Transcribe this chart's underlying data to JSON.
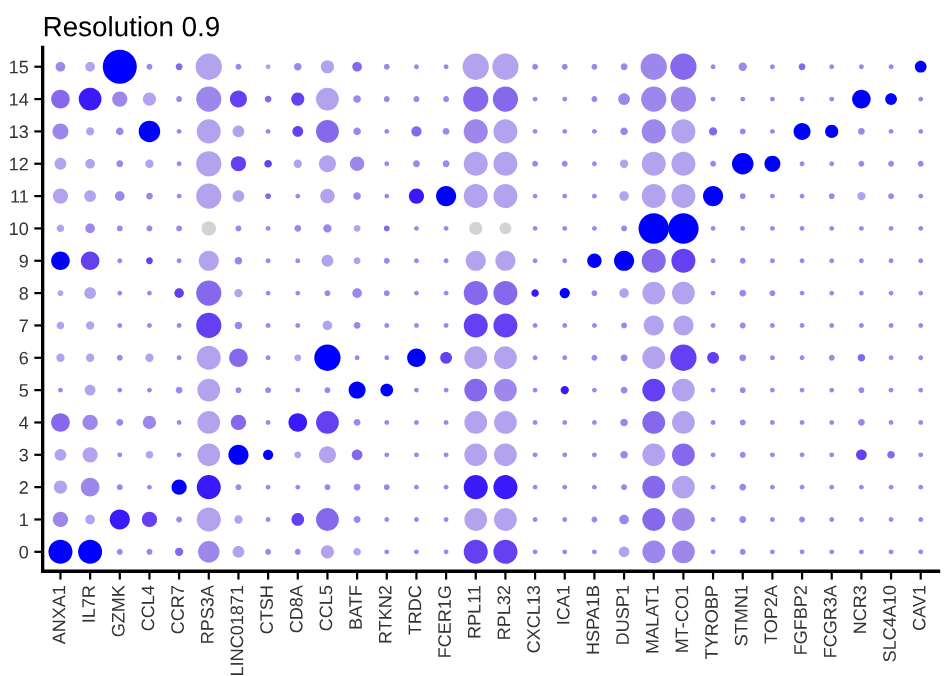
{
  "chart_data": {
    "type": "bubble",
    "title": "Resolution 0.9",
    "categories": [
      "ANXA1",
      "IL7R",
      "GZMK",
      "CCL4",
      "CCR7",
      "RPS3A",
      "LINC01871",
      "CTSH",
      "CD8A",
      "CCL5",
      "BATF",
      "RTKN2",
      "TRDC",
      "FCER1G",
      "RPL11",
      "RPL32",
      "CXCL13",
      "ICA1",
      "HSPA1B",
      "DUSP1",
      "MALAT1",
      "MT-CO1",
      "TYROBP",
      "STMN1",
      "TOP2A",
      "FGFBP2",
      "FCGR3A",
      "NCR3",
      "SLC4A10",
      "CAV1"
    ],
    "ylim": [
      -0.6,
      15.6
    ],
    "yticks": [
      0,
      1,
      2,
      3,
      4,
      5,
      6,
      7,
      8,
      9,
      10,
      11,
      12,
      13,
      14,
      15
    ],
    "grid": false,
    "legend": false,
    "marker": "circle",
    "series": [
      {
        "values": [
          0,
          0,
          0,
          0,
          0,
          0,
          0,
          0,
          0,
          0,
          0,
          0,
          0,
          0,
          0,
          0,
          0,
          0,
          0,
          0,
          0,
          0,
          0,
          0,
          0,
          0,
          0,
          0,
          0,
          0
        ],
        "sizes": [
          0.5,
          0.5,
          0.03,
          0.03,
          0.06,
          0.4,
          0.12,
          0.03,
          0.03,
          0.15,
          0.05,
          0.02,
          0.02,
          0.02,
          0.5,
          0.5,
          0.02,
          0.02,
          0.02,
          0.1,
          0.45,
          0.45,
          0.02,
          0.03,
          0.02,
          0.02,
          0.02,
          0.02,
          0.02,
          0.02
        ],
        "colors": [
          "#0000ff",
          "#0000ff",
          "#9d86ec",
          "#9d86ec",
          "#8668ec",
          "#9d86ec",
          "#b3a3ef",
          "#9d86ec",
          "#9d86ec",
          "#b3a3ef",
          "#b3a3ef",
          "#9d86ec",
          "#9d86ec",
          "#9d86ec",
          "#6440f2",
          "#6440f2",
          "#9d86ec",
          "#9d86ec",
          "#9d86ec",
          "#b3a3ef",
          "#9d86ec",
          "#9d86ec",
          "#9d86ec",
          "#9d86ec",
          "#9d86ec",
          "#9d86ec",
          "#9d86ec",
          "#9d86ec",
          "#9d86ec",
          "#9d86ec"
        ]
      },
      {
        "values": [
          1,
          1,
          1,
          1,
          1,
          1,
          1,
          1,
          1,
          1,
          1,
          1,
          1,
          1,
          1,
          1,
          1,
          1,
          1,
          1,
          1,
          1,
          1,
          1,
          1,
          1,
          1,
          1,
          1,
          1
        ],
        "sizes": [
          0.2,
          0.08,
          0.35,
          0.2,
          0.03,
          0.5,
          0.06,
          0.02,
          0.14,
          0.45,
          0.04,
          0.02,
          0.02,
          0.02,
          0.45,
          0.45,
          0.02,
          0.02,
          0.03,
          0.08,
          0.45,
          0.45,
          0.02,
          0.04,
          0.02,
          0.03,
          0.02,
          0.02,
          0.02,
          0.02
        ],
        "colors": [
          "#9d86ec",
          "#b3a3ef",
          "#3a1af9",
          "#6440f2",
          "#9d86ec",
          "#b3a3ef",
          "#b3a3ef",
          "#9d86ec",
          "#6440f2",
          "#8668ec",
          "#9d86ec",
          "#9d86ec",
          "#9d86ec",
          "#9d86ec",
          "#b3a3ef",
          "#b3a3ef",
          "#9d86ec",
          "#9d86ec",
          "#9d86ec",
          "#9d86ec",
          "#8668ec",
          "#9d86ec",
          "#9d86ec",
          "#9d86ec",
          "#9d86ec",
          "#9d86ec",
          "#9d86ec",
          "#9d86ec",
          "#9d86ec",
          "#9d86ec"
        ]
      },
      {
        "values": [
          2,
          2,
          2,
          2,
          2,
          2,
          2,
          2,
          2,
          2,
          2,
          2,
          2,
          2,
          2,
          2,
          2,
          2,
          2,
          2,
          2,
          2,
          2,
          2,
          2,
          2,
          2,
          2,
          2,
          2
        ],
        "sizes": [
          0.15,
          0.3,
          0.03,
          0.02,
          0.2,
          0.5,
          0.03,
          0.02,
          0.02,
          0.03,
          0.04,
          0.03,
          0.02,
          0.02,
          0.5,
          0.5,
          0.02,
          0.02,
          0.02,
          0.03,
          0.45,
          0.45,
          0.02,
          0.04,
          0.02,
          0.02,
          0.02,
          0.02,
          0.02,
          0.02
        ],
        "colors": [
          "#b3a3ef",
          "#9d86ec",
          "#9d86ec",
          "#9d86ec",
          "#0000ff",
          "#3a1af9",
          "#9d86ec",
          "#9d86ec",
          "#9d86ec",
          "#9d86ec",
          "#9d86ec",
          "#9d86ec",
          "#9d86ec",
          "#9d86ec",
          "#3a1af9",
          "#3a1af9",
          "#9d86ec",
          "#9d86ec",
          "#9d86ec",
          "#9d86ec",
          "#8668ec",
          "#b3a3ef",
          "#9d86ec",
          "#9d86ec",
          "#9d86ec",
          "#9d86ec",
          "#9d86ec",
          "#9d86ec",
          "#9d86ec",
          "#9d86ec"
        ]
      },
      {
        "values": [
          3,
          3,
          3,
          3,
          3,
          3,
          3,
          3,
          3,
          3,
          3,
          3,
          3,
          3,
          3,
          3,
          3,
          3,
          3,
          3,
          3,
          3,
          3,
          3,
          3,
          3,
          3,
          3,
          3,
          3
        ],
        "sizes": [
          0.12,
          0.2,
          0.02,
          0.05,
          0.02,
          0.45,
          0.35,
          0.09,
          0.04,
          0.25,
          0.1,
          0.02,
          0.02,
          0.02,
          0.45,
          0.45,
          0.02,
          0.02,
          0.02,
          0.05,
          0.45,
          0.45,
          0.02,
          0.03,
          0.02,
          0.02,
          0.02,
          0.1,
          0.05,
          0.02
        ],
        "colors": [
          "#b3a3ef",
          "#b3a3ef",
          "#9d86ec",
          "#b3a3ef",
          "#9d86ec",
          "#b3a3ef",
          "#0000ff",
          "#0000ff",
          "#b3a3ef",
          "#b3a3ef",
          "#8668ec",
          "#9d86ec",
          "#9d86ec",
          "#9d86ec",
          "#b3a3ef",
          "#b3a3ef",
          "#9d86ec",
          "#9d86ec",
          "#9d86ec",
          "#9d86ec",
          "#b3a3ef",
          "#8668ec",
          "#9d86ec",
          "#9d86ec",
          "#9d86ec",
          "#9d86ec",
          "#9d86ec",
          "#6440f2",
          "#8668ec",
          "#9d86ec"
        ]
      },
      {
        "values": [
          4,
          4,
          4,
          4,
          4,
          4,
          4,
          4,
          4,
          4,
          4,
          4,
          4,
          4,
          4,
          4,
          4,
          4,
          4,
          4,
          4,
          4,
          4,
          4,
          4,
          4,
          4,
          4,
          4,
          4
        ],
        "sizes": [
          0.3,
          0.2,
          0.04,
          0.15,
          0.02,
          0.45,
          0.2,
          0.02,
          0.3,
          0.45,
          0.04,
          0.02,
          0.02,
          0.02,
          0.45,
          0.45,
          0.02,
          0.02,
          0.02,
          0.05,
          0.45,
          0.45,
          0.02,
          0.03,
          0.02,
          0.02,
          0.02,
          0.04,
          0.02,
          0.02
        ],
        "colors": [
          "#8668ec",
          "#9d86ec",
          "#9d86ec",
          "#9d86ec",
          "#9d86ec",
          "#b3a3ef",
          "#8668ec",
          "#9d86ec",
          "#3a1af9",
          "#6440f2",
          "#9d86ec",
          "#9d86ec",
          "#9d86ec",
          "#9d86ec",
          "#b3a3ef",
          "#b3a3ef",
          "#9d86ec",
          "#9d86ec",
          "#9d86ec",
          "#9d86ec",
          "#8668ec",
          "#b3a3ef",
          "#9d86ec",
          "#9d86ec",
          "#9d86ec",
          "#9d86ec",
          "#9d86ec",
          "#9d86ec",
          "#9d86ec",
          "#9d86ec"
        ]
      },
      {
        "values": [
          5,
          5,
          5,
          5,
          5,
          5,
          5,
          5,
          5,
          5,
          5,
          5,
          5,
          5,
          5,
          5,
          5,
          5,
          5,
          5,
          5,
          5,
          5,
          5,
          5,
          5,
          5,
          5,
          5,
          5
        ],
        "sizes": [
          0.02,
          0.1,
          0.02,
          0.02,
          0.04,
          0.45,
          0.03,
          0.03,
          0.02,
          0.03,
          0.25,
          0.14,
          0.02,
          0.02,
          0.45,
          0.45,
          0.02,
          0.06,
          0.02,
          0.04,
          0.45,
          0.45,
          0.02,
          0.03,
          0.02,
          0.02,
          0.02,
          0.03,
          0.02,
          0.02
        ],
        "colors": [
          "#9d86ec",
          "#b3a3ef",
          "#9d86ec",
          "#9d86ec",
          "#9d86ec",
          "#b3a3ef",
          "#9d86ec",
          "#9d86ec",
          "#9d86ec",
          "#9d86ec",
          "#0000ff",
          "#0000ff",
          "#9d86ec",
          "#9d86ec",
          "#8668ec",
          "#9d86ec",
          "#9d86ec",
          "#3a1af9",
          "#9d86ec",
          "#9d86ec",
          "#6440f2",
          "#b3a3ef",
          "#9d86ec",
          "#9d86ec",
          "#9d86ec",
          "#9d86ec",
          "#9d86ec",
          "#9d86ec",
          "#9d86ec",
          "#9d86ec"
        ]
      },
      {
        "values": [
          6,
          6,
          6,
          6,
          6,
          6,
          6,
          6,
          6,
          6,
          6,
          6,
          6,
          6,
          6,
          6,
          6,
          6,
          6,
          6,
          6,
          6,
          6,
          6,
          6,
          6,
          6,
          6,
          6,
          6
        ],
        "sizes": [
          0.06,
          0.06,
          0.03,
          0.06,
          0.02,
          0.5,
          0.3,
          0.02,
          0.04,
          0.6,
          0.02,
          0.02,
          0.3,
          0.12,
          0.45,
          0.45,
          0.02,
          0.02,
          0.03,
          0.04,
          0.45,
          0.6,
          0.12,
          0.04,
          0.02,
          0.02,
          0.03,
          0.05,
          0.02,
          0.02
        ],
        "colors": [
          "#b3a3ef",
          "#b3a3ef",
          "#9d86ec",
          "#b3a3ef",
          "#9d86ec",
          "#b3a3ef",
          "#8668ec",
          "#9d86ec",
          "#b3a3ef",
          "#0000ff",
          "#9d86ec",
          "#9d86ec",
          "#0000ff",
          "#6440f2",
          "#b3a3ef",
          "#b3a3ef",
          "#9d86ec",
          "#9d86ec",
          "#9d86ec",
          "#9d86ec",
          "#b3a3ef",
          "#6440f2",
          "#6440f2",
          "#9d86ec",
          "#9d86ec",
          "#9d86ec",
          "#9d86ec",
          "#8668ec",
          "#9d86ec",
          "#9d86ec"
        ]
      },
      {
        "values": [
          7,
          7,
          7,
          7,
          7,
          7,
          7,
          7,
          7,
          7,
          7,
          7,
          7,
          7,
          7,
          7,
          7,
          7,
          7,
          7,
          7,
          7,
          7,
          7,
          7,
          7,
          7,
          7,
          7,
          7
        ],
        "sizes": [
          0.05,
          0.06,
          0.02,
          0.02,
          0.02,
          0.55,
          0.05,
          0.02,
          0.02,
          0.08,
          0.04,
          0.02,
          0.02,
          0.02,
          0.5,
          0.5,
          0.02,
          0.02,
          0.02,
          0.03,
          0.35,
          0.35,
          0.02,
          0.03,
          0.02,
          0.02,
          0.02,
          0.02,
          0.02,
          0.02
        ],
        "colors": [
          "#b3a3ef",
          "#b3a3ef",
          "#9d86ec",
          "#9d86ec",
          "#9d86ec",
          "#6440f2",
          "#9d86ec",
          "#9d86ec",
          "#9d86ec",
          "#b3a3ef",
          "#9d86ec",
          "#9d86ec",
          "#9d86ec",
          "#9d86ec",
          "#6440f2",
          "#6440f2",
          "#9d86ec",
          "#9d86ec",
          "#9d86ec",
          "#9d86ec",
          "#b3a3ef",
          "#b3a3ef",
          "#9d86ec",
          "#9d86ec",
          "#9d86ec",
          "#9d86ec",
          "#9d86ec",
          "#9d86ec",
          "#9d86ec",
          "#9d86ec"
        ]
      },
      {
        "values": [
          8,
          8,
          8,
          8,
          8,
          8,
          8,
          8,
          8,
          8,
          8,
          8,
          8,
          8,
          8,
          8,
          8,
          8,
          8,
          8,
          8,
          8,
          8,
          8,
          8,
          8,
          8,
          8,
          8,
          8
        ],
        "sizes": [
          0.03,
          0.12,
          0.02,
          0.02,
          0.08,
          0.55,
          0.06,
          0.02,
          0.02,
          0.03,
          0.08,
          0.03,
          0.02,
          0.02,
          0.5,
          0.5,
          0.05,
          0.09,
          0.03,
          0.08,
          0.45,
          0.45,
          0.02,
          0.04,
          0.03,
          0.02,
          0.02,
          0.02,
          0.02,
          0.02
        ],
        "colors": [
          "#b3a3ef",
          "#b3a3ef",
          "#9d86ec",
          "#9d86ec",
          "#6440f2",
          "#8668ec",
          "#b3a3ef",
          "#9d86ec",
          "#9d86ec",
          "#9d86ec",
          "#9d86ec",
          "#9d86ec",
          "#9d86ec",
          "#9d86ec",
          "#8668ec",
          "#8668ec",
          "#3a1af9",
          "#0000ff",
          "#9d86ec",
          "#b3a3ef",
          "#b3a3ef",
          "#b3a3ef",
          "#9d86ec",
          "#9d86ec",
          "#9d86ec",
          "#9d86ec",
          "#9d86ec",
          "#9d86ec",
          "#9d86ec",
          "#9d86ec"
        ]
      },
      {
        "values": [
          9,
          9,
          9,
          9,
          9,
          9,
          9,
          9,
          9,
          9,
          9,
          9,
          9,
          9,
          9,
          9,
          9,
          9,
          9,
          9,
          9,
          9,
          9,
          9,
          9,
          9,
          9,
          9,
          9,
          9
        ],
        "sizes": [
          0.3,
          0.3,
          0.02,
          0.04,
          0.02,
          0.35,
          0.05,
          0.02,
          0.02,
          0.12,
          0.04,
          0.03,
          0.02,
          0.02,
          0.35,
          0.35,
          0.02,
          0.02,
          0.18,
          0.35,
          0.5,
          0.5,
          0.02,
          0.03,
          0.02,
          0.02,
          0.02,
          0.02,
          0.02,
          0.02
        ],
        "colors": [
          "#0000ff",
          "#6440f2",
          "#9d86ec",
          "#6440f2",
          "#9d86ec",
          "#b3a3ef",
          "#9d86ec",
          "#9d86ec",
          "#9d86ec",
          "#b3a3ef",
          "#b3a3ef",
          "#9d86ec",
          "#9d86ec",
          "#9d86ec",
          "#b3a3ef",
          "#b3a3ef",
          "#9d86ec",
          "#9d86ec",
          "#0000ff",
          "#0000ff",
          "#8668ec",
          "#6440f2",
          "#9d86ec",
          "#9d86ec",
          "#9d86ec",
          "#9d86ec",
          "#9d86ec",
          "#9d86ec",
          "#9d86ec",
          "#9d86ec"
        ]
      },
      {
        "values": [
          10,
          10,
          10,
          10,
          10,
          10,
          10,
          10,
          10,
          10,
          10,
          10,
          10,
          10,
          10,
          10,
          10,
          10,
          10,
          10,
          10,
          10,
          10,
          10,
          10,
          10,
          10,
          10,
          10,
          10
        ],
        "sizes": [
          0.05,
          0.08,
          0.03,
          0.03,
          0.03,
          0.18,
          0.03,
          0.02,
          0.04,
          0.06,
          0.04,
          0.03,
          0.02,
          0.02,
          0.15,
          0.12,
          0.02,
          0.02,
          0.02,
          0.03,
          0.8,
          0.8,
          0.02,
          0.02,
          0.02,
          0.02,
          0.02,
          0.02,
          0.02,
          0.02
        ],
        "colors": [
          "#b3a3ef",
          "#9d86ec",
          "#9d86ec",
          "#9d86ec",
          "#9d86ec",
          "#d3d3d3",
          "#9d86ec",
          "#9d86ec",
          "#9d86ec",
          "#9d86ec",
          "#b3a3ef",
          "#8668ec",
          "#9d86ec",
          "#9d86ec",
          "#d3d3d3",
          "#d3d3d3",
          "#9d86ec",
          "#9d86ec",
          "#9d86ec",
          "#9d86ec",
          "#0000ff",
          "#0000ff",
          "#9d86ec",
          "#9d86ec",
          "#9d86ec",
          "#9d86ec",
          "#9d86ec",
          "#9d86ec",
          "#9d86ec",
          "#9d86ec"
        ]
      },
      {
        "values": [
          11,
          11,
          11,
          11,
          11,
          11,
          11,
          11,
          11,
          11,
          11,
          11,
          11,
          11,
          11,
          11,
          11,
          11,
          11,
          11,
          11,
          11,
          11,
          11,
          11,
          11,
          11,
          11,
          11,
          11
        ],
        "sizes": [
          0.2,
          0.12,
          0.08,
          0.04,
          0.02,
          0.55,
          0.12,
          0.03,
          0.02,
          0.18,
          0.05,
          0.02,
          0.2,
          0.35,
          0.5,
          0.5,
          0.02,
          0.02,
          0.02,
          0.08,
          0.5,
          0.5,
          0.35,
          0.03,
          0.02,
          0.02,
          0.03,
          0.06,
          0.03,
          0.02
        ],
        "colors": [
          "#b3a3ef",
          "#b3a3ef",
          "#9d86ec",
          "#9d86ec",
          "#9d86ec",
          "#b3a3ef",
          "#b3a3ef",
          "#8668ec",
          "#9d86ec",
          "#b3a3ef",
          "#9d86ec",
          "#9d86ec",
          "#3a1af9",
          "#0000ff",
          "#b3a3ef",
          "#b3a3ef",
          "#9d86ec",
          "#9d86ec",
          "#9d86ec",
          "#b3a3ef",
          "#b3a3ef",
          "#b3a3ef",
          "#0000ff",
          "#9d86ec",
          "#9d86ec",
          "#9d86ec",
          "#9d86ec",
          "#b3a3ef",
          "#9d86ec",
          "#9d86ec"
        ]
      },
      {
        "values": [
          12,
          12,
          12,
          12,
          12,
          12,
          12,
          12,
          12,
          12,
          12,
          12,
          12,
          12,
          12,
          12,
          12,
          12,
          12,
          12,
          12,
          12,
          12,
          12,
          12,
          12,
          12,
          12,
          12,
          12
        ],
        "sizes": [
          0.12,
          0.08,
          0.04,
          0.06,
          0.02,
          0.55,
          0.2,
          0.05,
          0.06,
          0.25,
          0.18,
          0.02,
          0.04,
          0.04,
          0.5,
          0.5,
          0.03,
          0.03,
          0.02,
          0.06,
          0.5,
          0.5,
          0.03,
          0.4,
          0.22,
          0.02,
          0.02,
          0.03,
          0.03,
          0.03
        ],
        "colors": [
          "#b3a3ef",
          "#b3a3ef",
          "#9d86ec",
          "#b3a3ef",
          "#9d86ec",
          "#b3a3ef",
          "#6440f2",
          "#6440f2",
          "#b3a3ef",
          "#b3a3ef",
          "#9d86ec",
          "#9d86ec",
          "#9d86ec",
          "#9d86ec",
          "#b3a3ef",
          "#b3a3ef",
          "#9d86ec",
          "#9d86ec",
          "#9d86ec",
          "#b3a3ef",
          "#b3a3ef",
          "#b3a3ef",
          "#9d86ec",
          "#0000ff",
          "#0000ff",
          "#9d86ec",
          "#9d86ec",
          "#9d86ec",
          "#9d86ec",
          "#9d86ec"
        ]
      },
      {
        "values": [
          13,
          13,
          13,
          13,
          13,
          13,
          13,
          13,
          13,
          13,
          13,
          13,
          13,
          13,
          13,
          13,
          13,
          13,
          13,
          13,
          13,
          13,
          13,
          13,
          13,
          13,
          13,
          13,
          13,
          13
        ],
        "sizes": [
          0.22,
          0.06,
          0.05,
          0.4,
          0.02,
          0.5,
          0.12,
          0.02,
          0.1,
          0.45,
          0.05,
          0.02,
          0.09,
          0.04,
          0.5,
          0.5,
          0.02,
          0.02,
          0.02,
          0.05,
          0.5,
          0.5,
          0.06,
          0.03,
          0.02,
          0.25,
          0.15,
          0.04,
          0.02,
          0.02
        ],
        "colors": [
          "#9d86ec",
          "#b3a3ef",
          "#9d86ec",
          "#0000ff",
          "#9d86ec",
          "#b3a3ef",
          "#b3a3ef",
          "#9d86ec",
          "#6440f2",
          "#8668ec",
          "#9d86ec",
          "#9d86ec",
          "#8668ec",
          "#9d86ec",
          "#9d86ec",
          "#b3a3ef",
          "#9d86ec",
          "#9d86ec",
          "#9d86ec",
          "#9d86ec",
          "#9d86ec",
          "#b3a3ef",
          "#8668ec",
          "#9d86ec",
          "#9d86ec",
          "#0000ff",
          "#0000ff",
          "#9d86ec",
          "#9d86ec",
          "#9d86ec"
        ]
      },
      {
        "values": [
          14,
          14,
          14,
          14,
          14,
          14,
          14,
          14,
          14,
          14,
          14,
          14,
          14,
          14,
          14,
          14,
          14,
          14,
          14,
          14,
          14,
          14,
          14,
          14,
          14,
          14,
          14,
          14,
          14,
          14
        ],
        "sizes": [
          0.3,
          0.45,
          0.2,
          0.15,
          0.03,
          0.55,
          0.25,
          0.04,
          0.15,
          0.45,
          0.05,
          0.03,
          0.03,
          0.03,
          0.55,
          0.55,
          0.02,
          0.02,
          0.03,
          0.12,
          0.55,
          0.55,
          0.02,
          0.02,
          0.02,
          0.02,
          0.02,
          0.3,
          0.12,
          0.02
        ],
        "colors": [
          "#8668ec",
          "#3a1af9",
          "#9d86ec",
          "#b3a3ef",
          "#9d86ec",
          "#9d86ec",
          "#6440f2",
          "#8668ec",
          "#6440f2",
          "#b3a3ef",
          "#9d86ec",
          "#9d86ec",
          "#9d86ec",
          "#9d86ec",
          "#8668ec",
          "#8668ec",
          "#9d86ec",
          "#9d86ec",
          "#9d86ec",
          "#9d86ec",
          "#9d86ec",
          "#9d86ec",
          "#9d86ec",
          "#9d86ec",
          "#9d86ec",
          "#9d86ec",
          "#9d86ec",
          "#0000ff",
          "#0000ff",
          "#9d86ec"
        ]
      },
      {
        "values": [
          15,
          15,
          15,
          15,
          15,
          15,
          15,
          15,
          15,
          15,
          15,
          15,
          15,
          15,
          15,
          15,
          15,
          15,
          15,
          15,
          15,
          15,
          15,
          15,
          15,
          15,
          15,
          15,
          15,
          15
        ],
        "sizes": [
          0.08,
          0.08,
          1,
          0.03,
          0.04,
          0.6,
          0.03,
          0.02,
          0.05,
          0.15,
          0.08,
          0.03,
          0.02,
          0.02,
          0.6,
          0.6,
          0.03,
          0.03,
          0.03,
          0.04,
          0.6,
          0.6,
          0.02,
          0.06,
          0.02,
          0.04,
          0.02,
          0.02,
          0.02,
          0.12
        ],
        "colors": [
          "#9d86ec",
          "#b3a3ef",
          "#0000ff",
          "#9d86ec",
          "#8668ec",
          "#b3a3ef",
          "#9d86ec",
          "#b3a3ef",
          "#9d86ec",
          "#b3a3ef",
          "#8668ec",
          "#9d86ec",
          "#9d86ec",
          "#9d86ec",
          "#b3a3ef",
          "#b3a3ef",
          "#9d86ec",
          "#9d86ec",
          "#9d86ec",
          "#9d86ec",
          "#9d86ec",
          "#8668ec",
          "#9d86ec",
          "#9d86ec",
          "#9d86ec",
          "#8668ec",
          "#9d86ec",
          "#9d86ec",
          "#9d86ec",
          "#0000ff"
        ]
      }
    ]
  }
}
